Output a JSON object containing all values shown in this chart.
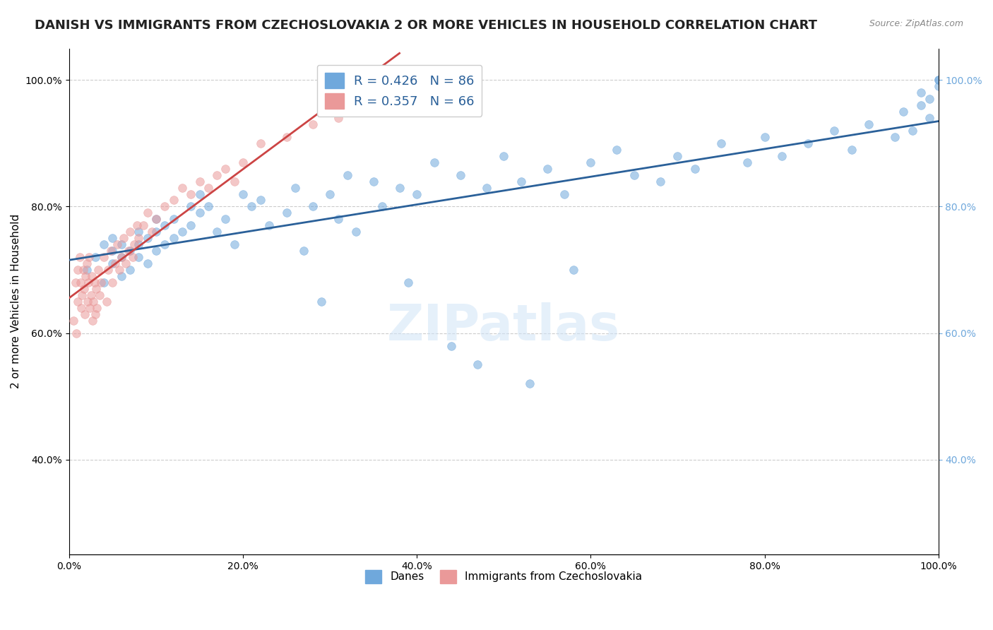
{
  "title": "DANISH VS IMMIGRANTS FROM CZECHOSLOVAKIA 2 OR MORE VEHICLES IN HOUSEHOLD CORRELATION CHART",
  "source": "Source: ZipAtlas.com",
  "xlabel": "",
  "ylabel": "2 or more Vehicles in Household",
  "xlim": [
    0.0,
    1.0
  ],
  "ylim": [
    0.25,
    1.05
  ],
  "xticks": [
    0.0,
    0.2,
    0.4,
    0.6,
    0.8,
    1.0
  ],
  "yticks": [
    0.4,
    0.6,
    0.8,
    1.0
  ],
  "xtick_labels": [
    "0.0%",
    "20.0%",
    "40.0%",
    "60.0%",
    "80.0%",
    "100.0%"
  ],
  "ytick_labels": [
    "40.0%",
    "60.0%",
    "80.0%",
    "100.0%"
  ],
  "blue_color": "#6fa8dc",
  "pink_color": "#ea9999",
  "blue_line_color": "#2a6099",
  "pink_line_color": "#cc4444",
  "legend_blue_label": "R = 0.426   N = 86",
  "legend_pink_label": "R = 0.357   N = 66",
  "legend_danes": "Danes",
  "legend_immigrants": "Immigrants from Czechoslovakia",
  "watermark": "ZIPatlas",
  "blue_R": 0.426,
  "blue_N": 86,
  "pink_R": 0.357,
  "pink_N": 66,
  "blue_x": [
    0.02,
    0.03,
    0.04,
    0.04,
    0.05,
    0.05,
    0.05,
    0.06,
    0.06,
    0.06,
    0.07,
    0.07,
    0.08,
    0.08,
    0.08,
    0.09,
    0.09,
    0.1,
    0.1,
    0.1,
    0.11,
    0.11,
    0.12,
    0.12,
    0.13,
    0.14,
    0.14,
    0.15,
    0.15,
    0.16,
    0.17,
    0.18,
    0.19,
    0.2,
    0.21,
    0.22,
    0.23,
    0.25,
    0.26,
    0.28,
    0.3,
    0.31,
    0.32,
    0.33,
    0.35,
    0.36,
    0.38,
    0.4,
    0.42,
    0.45,
    0.47,
    0.48,
    0.5,
    0.52,
    0.55,
    0.57,
    0.6,
    0.63,
    0.65,
    0.68,
    0.7,
    0.72,
    0.75,
    0.78,
    0.8,
    0.82,
    0.85,
    0.88,
    0.9,
    0.92,
    0.95,
    0.96,
    0.97,
    0.98,
    0.98,
    0.99,
    0.99,
    1.0,
    1.0,
    1.0,
    0.27,
    0.29,
    0.39,
    0.44,
    0.53,
    0.58
  ],
  "blue_y": [
    0.7,
    0.72,
    0.68,
    0.74,
    0.71,
    0.73,
    0.75,
    0.69,
    0.72,
    0.74,
    0.7,
    0.73,
    0.72,
    0.74,
    0.76,
    0.71,
    0.75,
    0.73,
    0.76,
    0.78,
    0.74,
    0.77,
    0.75,
    0.78,
    0.76,
    0.77,
    0.8,
    0.79,
    0.82,
    0.8,
    0.76,
    0.78,
    0.74,
    0.82,
    0.8,
    0.81,
    0.77,
    0.79,
    0.83,
    0.8,
    0.82,
    0.78,
    0.85,
    0.76,
    0.84,
    0.8,
    0.83,
    0.82,
    0.87,
    0.85,
    0.55,
    0.83,
    0.88,
    0.84,
    0.86,
    0.82,
    0.87,
    0.89,
    0.85,
    0.84,
    0.88,
    0.86,
    0.9,
    0.87,
    0.91,
    0.88,
    0.9,
    0.92,
    0.89,
    0.93,
    0.91,
    0.95,
    0.92,
    0.96,
    0.98,
    0.94,
    0.97,
    0.99,
    1.0,
    1.0,
    0.73,
    0.65,
    0.68,
    0.58,
    0.52,
    0.7
  ],
  "pink_x": [
    0.005,
    0.007,
    0.008,
    0.01,
    0.01,
    0.012,
    0.013,
    0.014,
    0.015,
    0.016,
    0.017,
    0.018,
    0.019,
    0.02,
    0.021,
    0.022,
    0.023,
    0.024,
    0.025,
    0.026,
    0.027,
    0.028,
    0.029,
    0.03,
    0.031,
    0.032,
    0.033,
    0.035,
    0.037,
    0.04,
    0.043,
    0.045,
    0.048,
    0.05,
    0.053,
    0.055,
    0.058,
    0.06,
    0.063,
    0.065,
    0.068,
    0.07,
    0.073,
    0.075,
    0.078,
    0.08,
    0.085,
    0.09,
    0.095,
    0.1,
    0.11,
    0.12,
    0.13,
    0.14,
    0.15,
    0.16,
    0.17,
    0.18,
    0.19,
    0.2,
    0.22,
    0.25,
    0.28,
    0.31,
    0.35,
    0.38
  ],
  "pink_y": [
    0.62,
    0.68,
    0.6,
    0.7,
    0.65,
    0.72,
    0.68,
    0.64,
    0.66,
    0.7,
    0.67,
    0.63,
    0.69,
    0.71,
    0.65,
    0.68,
    0.72,
    0.64,
    0.66,
    0.69,
    0.62,
    0.65,
    0.68,
    0.63,
    0.67,
    0.64,
    0.7,
    0.66,
    0.68,
    0.72,
    0.65,
    0.7,
    0.73,
    0.68,
    0.71,
    0.74,
    0.7,
    0.72,
    0.75,
    0.71,
    0.73,
    0.76,
    0.72,
    0.74,
    0.77,
    0.75,
    0.77,
    0.79,
    0.76,
    0.78,
    0.8,
    0.81,
    0.83,
    0.82,
    0.84,
    0.83,
    0.85,
    0.86,
    0.84,
    0.87,
    0.9,
    0.91,
    0.93,
    0.94,
    0.97,
    1.0
  ],
  "title_fontsize": 13,
  "axis_label_fontsize": 11,
  "tick_fontsize": 10,
  "marker_size": 12,
  "alpha": 0.55,
  "background_color": "#ffffff",
  "grid_color": "#cccccc",
  "right_ytick_color": "#6fa8dc"
}
